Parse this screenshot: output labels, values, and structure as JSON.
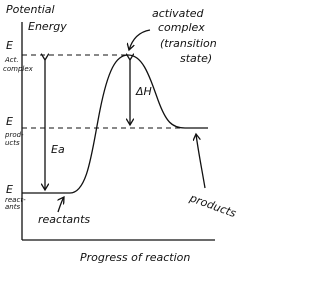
{
  "axes": {
    "y_label": [
      "Potential",
      "Energy"
    ],
    "x_label": "Progress of reaction"
  },
  "levels": [
    {
      "symbol": "E",
      "label": [
        "Act.",
        "complex"
      ]
    },
    {
      "symbol": "E",
      "label": [
        "prod-",
        "ucts"
      ]
    },
    {
      "symbol": "E",
      "label": [
        "react-",
        "ants"
      ]
    }
  ],
  "annotations": {
    "activated_complex": [
      "activated",
      "complex",
      "(transition",
      "state)"
    ],
    "delta_h": "ΔH",
    "ea": "Ea",
    "reactants": "reactants",
    "products": "products"
  }
}
